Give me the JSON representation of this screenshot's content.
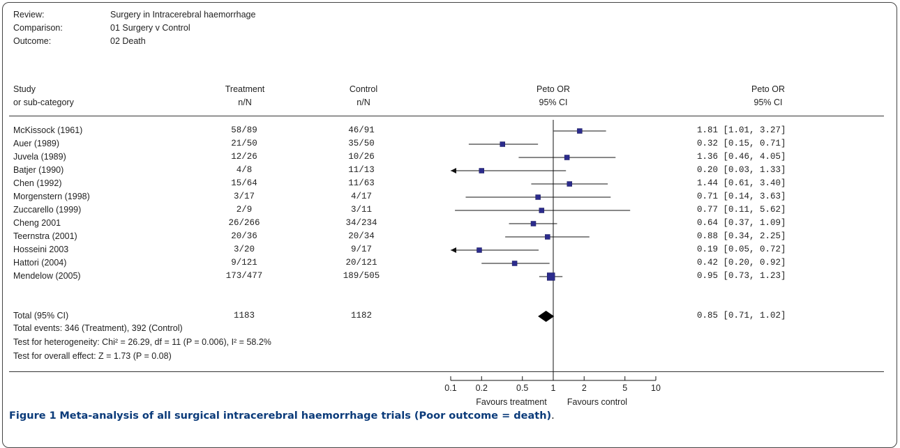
{
  "meta": [
    {
      "label": "Review:",
      "value": "Surgery in Intracerebral haemorrhage"
    },
    {
      "label": "Comparison:",
      "value": "01 Surgery v Control"
    },
    {
      "label": "Outcome:",
      "value": "02 Death"
    }
  ],
  "headers": {
    "study1": "Study",
    "study2": "or sub-category",
    "treat1": "Treatment",
    "treat2": "n/N",
    "ctrl1": "Control",
    "ctrl2": "n/N",
    "plot1": "Peto OR",
    "plot2": "95% CI",
    "est1": "Peto OR",
    "est2": "95% CI"
  },
  "chart_data": {
    "type": "forest",
    "scale": "log",
    "xlim": [
      0.1,
      10
    ],
    "ticks": [
      "0.1",
      "0.2",
      "0.5",
      "1",
      "2",
      "5",
      "10"
    ],
    "studies": [
      {
        "name": "McKissock (1961)",
        "treatment": "58/89",
        "control": "46/91",
        "or": 1.81,
        "lo": 1.01,
        "hi": 3.27,
        "label": "1.81 [1.01, 3.27]"
      },
      {
        "name": "Auer (1989)",
        "treatment": "21/50",
        "control": "35/50",
        "or": 0.32,
        "lo": 0.15,
        "hi": 0.71,
        "label": "0.32 [0.15, 0.71]"
      },
      {
        "name": "Juvela (1989)",
        "treatment": "12/26",
        "control": "10/26",
        "or": 1.36,
        "lo": 0.46,
        "hi": 4.05,
        "label": "1.36 [0.46, 4.05]"
      },
      {
        "name": "Batjer (1990)",
        "treatment": "4/8",
        "control": "11/13",
        "or": 0.2,
        "lo": 0.03,
        "hi": 1.33,
        "label": "0.20 [0.03, 1.33]"
      },
      {
        "name": "Chen (1992)",
        "treatment": "15/64",
        "control": "11/63",
        "or": 1.44,
        "lo": 0.61,
        "hi": 3.4,
        "label": "1.44 [0.61, 3.40]"
      },
      {
        "name": "Morgenstern (1998)",
        "treatment": "3/17",
        "control": "4/17",
        "or": 0.71,
        "lo": 0.14,
        "hi": 3.63,
        "label": "0.71 [0.14, 3.63]"
      },
      {
        "name": "Zuccarello (1999)",
        "treatment": "2/9",
        "control": "3/11",
        "or": 0.77,
        "lo": 0.11,
        "hi": 5.62,
        "label": "0.77 [0.11, 5.62]"
      },
      {
        "name": "Cheng 2001",
        "treatment": "26/266",
        "control": "34/234",
        "or": 0.64,
        "lo": 0.37,
        "hi": 1.09,
        "label": "0.64 [0.37, 1.09]"
      },
      {
        "name": "Teernstra (2001)",
        "treatment": "20/36",
        "control": "20/34",
        "or": 0.88,
        "lo": 0.34,
        "hi": 2.25,
        "label": "0.88 [0.34, 2.25]"
      },
      {
        "name": "Hosseini 2003",
        "treatment": "3/20",
        "control": "9/17",
        "or": 0.19,
        "lo": 0.05,
        "hi": 0.72,
        "label": "0.19 [0.05, 0.72]"
      },
      {
        "name": "Hattori (2004)",
        "treatment": "9/121",
        "control": "20/121",
        "or": 0.42,
        "lo": 0.2,
        "hi": 0.92,
        "label": "0.42 [0.20, 0.92]"
      },
      {
        "name": "Mendelow (2005)",
        "treatment": "173/477",
        "control": "189/505",
        "or": 0.95,
        "lo": 0.73,
        "hi": 1.23,
        "label": "0.95 [0.73, 1.23]"
      }
    ],
    "total": {
      "name": "Total (95% CI)",
      "treatment": "1183",
      "control": "1182",
      "or": 0.85,
      "lo": 0.71,
      "hi": 1.02,
      "label": "0.85 [0.71, 1.02]"
    },
    "favours_left": "Favours treatment",
    "favours_right": "Favours control",
    "marker_color": "#2b2b8c"
  },
  "footer": {
    "events": "Total events: 346 (Treatment), 392 (Control)",
    "heterogeneity": "Test for heterogeneity: Chi² = 26.29, df = 11 (P = 0.006), I² = 58.2%",
    "overall": "Test for overall effect: Z = 1.73 (P = 0.08)"
  },
  "caption": {
    "label": "Figure 1",
    "text": "Meta-analysis of all surgical intracerebral haemorrhage trials (Poor outcome = death)",
    "end": "."
  }
}
